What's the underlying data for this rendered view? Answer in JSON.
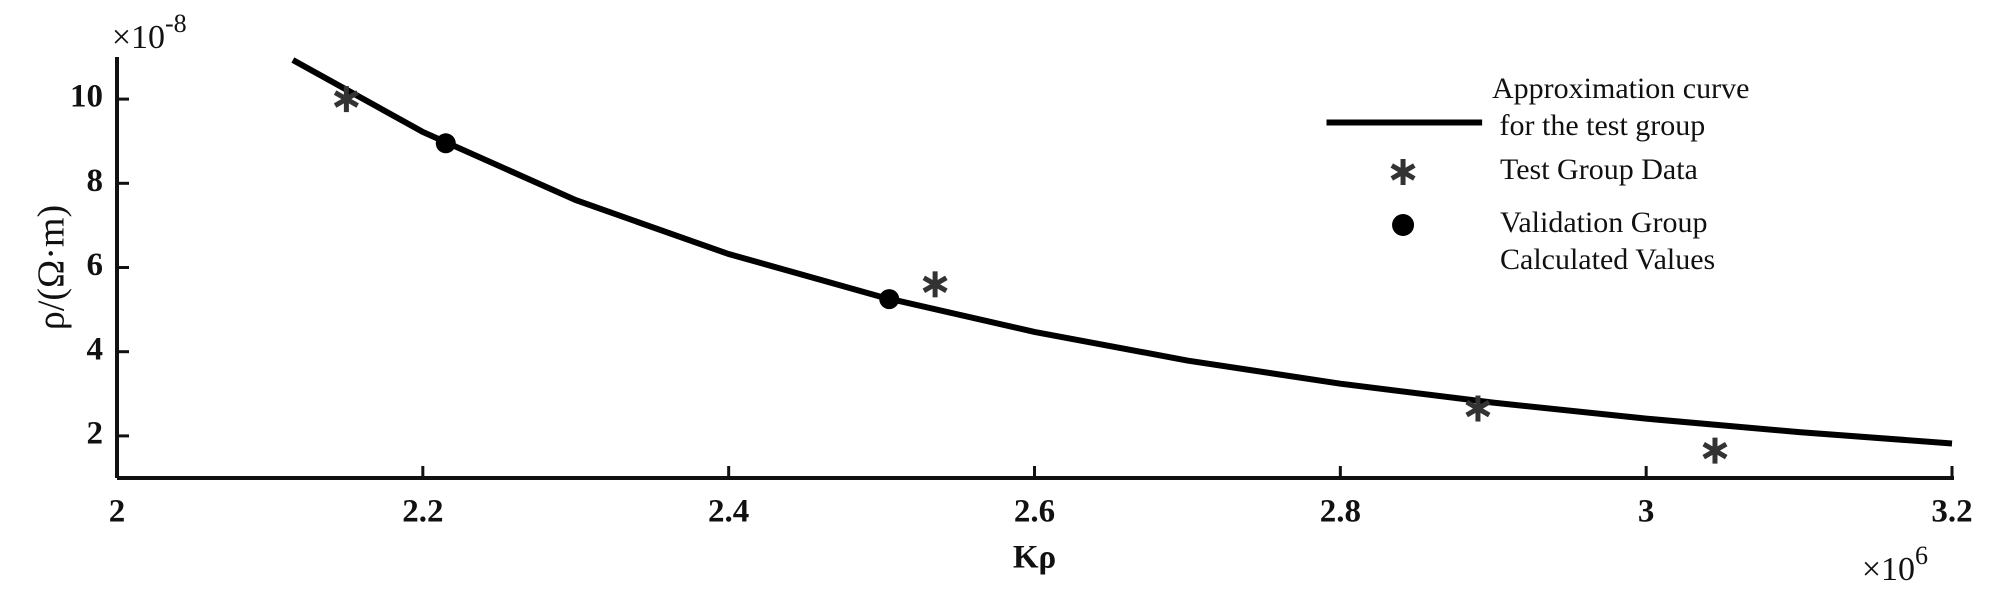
{
  "chart_data": {
    "type": "line",
    "x_label": "Kρ",
    "y_label": "ρ/(Ω·m)",
    "x_multiplier": {
      "base": "×10",
      "exponent": "6"
    },
    "y_multiplier": {
      "base": "×10",
      "exponent": "-8"
    },
    "xlim": [
      2,
      3.2
    ],
    "xticks": [
      2,
      2.2,
      2.4,
      2.6,
      2.8,
      3,
      3.2
    ],
    "ylim": [
      1,
      11
    ],
    "yticks": [
      2,
      4,
      6,
      8,
      10
    ],
    "series": [
      {
        "name": "Approximation curve\n for the test group",
        "kind": "line",
        "color": "#000000",
        "x": [
          2.115,
          2.2,
          2.3,
          2.4,
          2.5,
          2.6,
          2.7,
          2.8,
          2.9,
          3.0,
          3.1,
          3.2
        ],
        "values": [
          10.93,
          9.22,
          7.6,
          6.32,
          5.3,
          4.47,
          3.79,
          3.24,
          2.79,
          2.41,
          2.09,
          1.82
        ]
      },
      {
        "name": "Test Group Data",
        "kind": "star",
        "color": "#333333",
        "x": [
          2.15,
          2.535,
          2.89,
          3.045
        ],
        "values": [
          10.0,
          5.6,
          2.65,
          1.65
        ]
      },
      {
        "name": "Validation Group\nCalculated Values",
        "kind": "dot",
        "color": "#000000",
        "x": [
          2.215,
          2.505
        ],
        "values": [
          8.95,
          5.25
        ]
      }
    ]
  }
}
